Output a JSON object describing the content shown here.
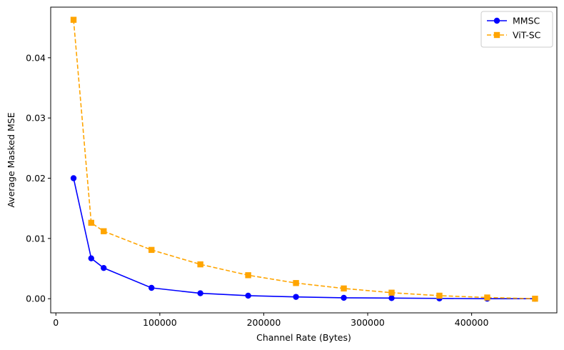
{
  "chart_data": {
    "type": "line",
    "title": "",
    "xlabel": "Channel Rate (Bytes)",
    "ylabel": "Average Masked MSE",
    "xlim": [
      -5000,
      482000
    ],
    "ylim": [
      -0.00235,
      0.0484
    ],
    "xticks": [
      0,
      100000,
      200000,
      300000,
      400000
    ],
    "xtick_labels": [
      "0",
      "100000",
      "200000",
      "300000",
      "400000"
    ],
    "yticks": [
      0.0,
      0.01,
      0.02,
      0.03,
      0.04
    ],
    "ytick_labels": [
      "0.00",
      "0.01",
      "0.02",
      "0.03",
      "0.04"
    ],
    "grid": false,
    "legend_position": "top-right",
    "series": [
      {
        "name": "MMSC",
        "color": "#0000ff",
        "line_style": "solid",
        "marker": "circle",
        "x": [
          17000,
          34000,
          46000,
          92000,
          139000,
          185000,
          231000,
          277000,
          323000,
          369000,
          415000,
          461000
        ],
        "y": [
          0.02,
          0.0067,
          0.0051,
          0.0018,
          0.0009,
          0.0005,
          0.0003,
          0.00015,
          0.0001,
          5e-05,
          0.0,
          0.0
        ]
      },
      {
        "name": "ViT-SC",
        "color": "#ffa500",
        "line_style": "dashed",
        "marker": "square",
        "x": [
          17000,
          34000,
          46000,
          92000,
          139000,
          185000,
          231000,
          277000,
          323000,
          369000,
          415000,
          461000
        ],
        "y": [
          0.0463,
          0.0126,
          0.0112,
          0.0081,
          0.0057,
          0.0039,
          0.0026,
          0.0017,
          0.001,
          0.0005,
          0.0002,
          0.0
        ]
      }
    ]
  }
}
